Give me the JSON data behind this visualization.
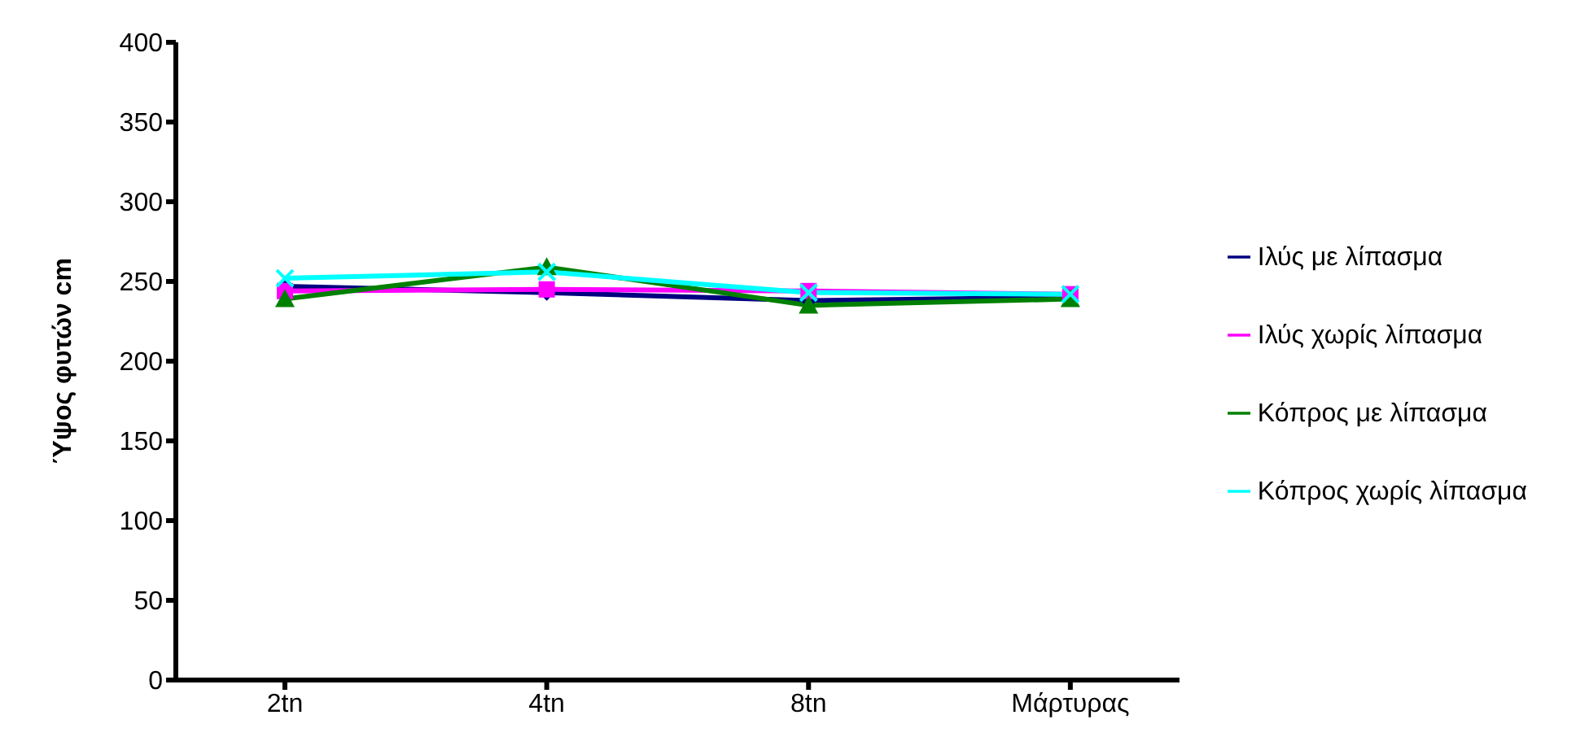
{
  "chart_data": {
    "type": "line",
    "ylabel": "Ύψος φυτών cm",
    "categories": [
      "2tn",
      "4tn",
      "8tn",
      "Μάρτυρας"
    ],
    "series": [
      {
        "name": "Ιλύς με λίπασμα",
        "color": "#000080",
        "marker": "diamond",
        "values": [
          247,
          243,
          238,
          240
        ]
      },
      {
        "name": "Ιλύς χωρίς λίπασμα",
        "color": "#ff00ff",
        "marker": "square",
        "values": [
          244,
          245,
          244,
          242
        ]
      },
      {
        "name": "Κόπρος με λίπασμα",
        "color": "#008000",
        "marker": "triangle",
        "values": [
          239,
          259,
          235,
          239
        ]
      },
      {
        "name": "Κόπρος χωρίς λίπασμα",
        "color": "#00ffff",
        "marker": "cross",
        "values": [
          252,
          256,
          243,
          242
        ]
      }
    ],
    "ylim": [
      0,
      400
    ],
    "yticks": [
      0,
      50,
      100,
      150,
      200,
      250,
      300,
      350,
      400
    ],
    "grid": false,
    "legend": "right"
  }
}
